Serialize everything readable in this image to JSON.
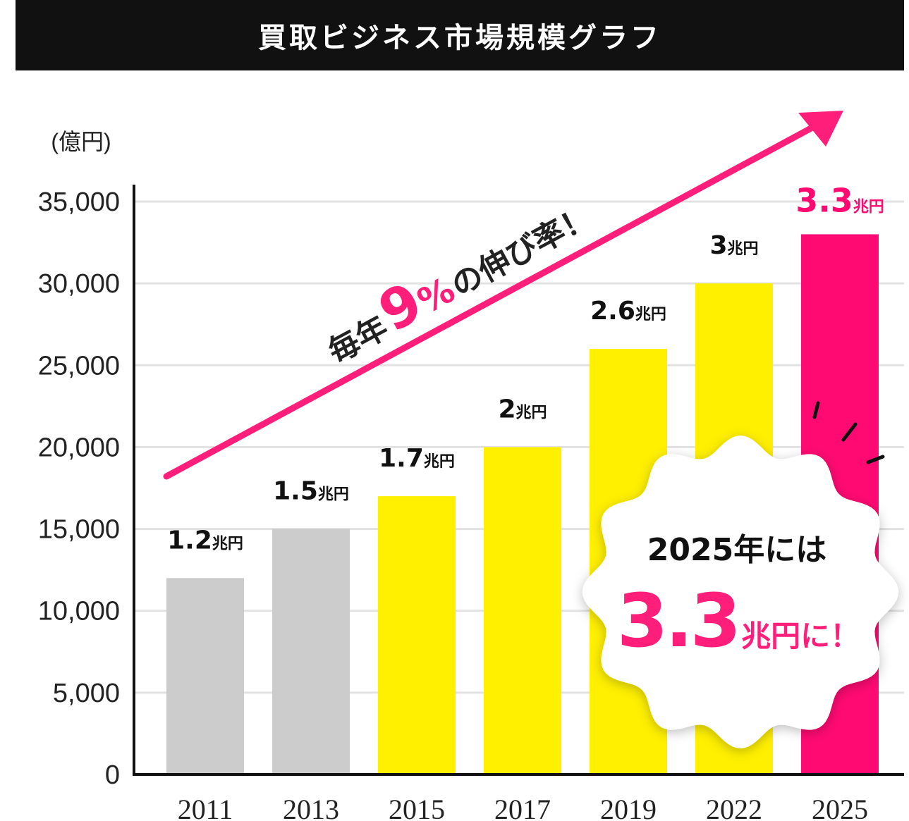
{
  "title": "買取ビジネス市場規模グラフ",
  "unit_label": "(億円)",
  "colors": {
    "title_bg": "#111111",
    "gray_bar": "#cccccc",
    "yellow_bar": "#fff000",
    "pink": "#ff0a72",
    "grid": "#e2e2e2"
  },
  "chart_data": {
    "type": "bar",
    "categories": [
      "2011",
      "2013",
      "2015",
      "2017",
      "2019",
      "2022",
      "2025"
    ],
    "values": [
      12000,
      15000,
      17000,
      20000,
      26000,
      30000,
      33000
    ],
    "bar_colors": [
      "gray",
      "gray",
      "yellow",
      "yellow",
      "yellow",
      "yellow",
      "pink"
    ],
    "value_labels": [
      {
        "num": "1.2",
        "unit": "兆円"
      },
      {
        "num": "1.5",
        "unit": "兆円"
      },
      {
        "num": "1.7",
        "unit": "兆円"
      },
      {
        "num": "2",
        "unit": "兆円"
      },
      {
        "num": "2.6",
        "unit": "兆円"
      },
      {
        "num": "3",
        "unit": "兆円"
      },
      {
        "num": "3.3",
        "unit": "兆円"
      }
    ],
    "yticks": [
      0,
      5000,
      10000,
      15000,
      20000,
      25000,
      30000,
      35000
    ],
    "ytick_labels": [
      "0",
      "5,000",
      "10,000",
      "15,000",
      "20,000",
      "25,000",
      "30,000",
      "35,000"
    ],
    "ylim": [
      0,
      35000
    ],
    "grid": true
  },
  "trend": {
    "prefix": "毎年",
    "number": "9",
    "percent": "%",
    "suffix": "の伸び率！"
  },
  "badge": {
    "line1": "2025年には",
    "big": "3.3",
    "unit": "兆円に！"
  }
}
